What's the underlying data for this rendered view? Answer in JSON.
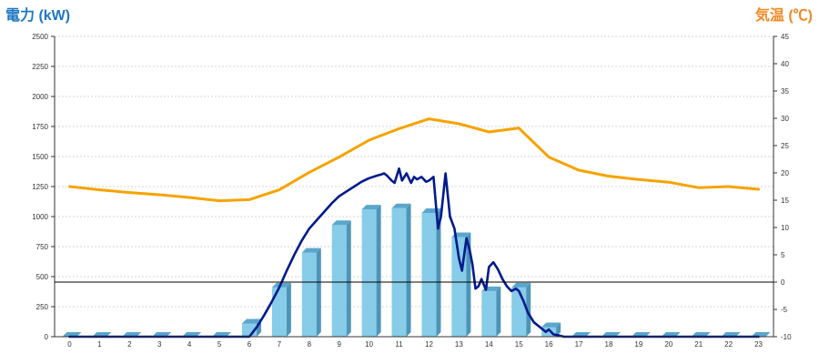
{
  "chart_data": {
    "type": "bar+line",
    "left_axis_title": "電力 (kW)",
    "right_axis_title": "気温 (℃)",
    "left_axis_color": "#1f78c1",
    "right_axis_color": "#f08a24",
    "categories": [
      "0",
      "1",
      "2",
      "3",
      "4",
      "5",
      "6",
      "7",
      "8",
      "9",
      "10",
      "11",
      "12",
      "13",
      "14",
      "15",
      "16",
      "17",
      "18",
      "19",
      "20",
      "21",
      "22",
      "23"
    ],
    "y_left_ticks": [
      "0",
      "250",
      "500",
      "750",
      "1000",
      "1250",
      "1500",
      "1750",
      "2000",
      "2250",
      "2500"
    ],
    "y_right_ticks": [
      "-10",
      "-5",
      "0",
      "5",
      "10",
      "15",
      "20",
      "25",
      "30",
      "35",
      "40",
      "45"
    ],
    "y_left_range": [
      0,
      2500
    ],
    "y_right_range": [
      -10,
      45
    ],
    "grid": true,
    "series": [
      {
        "kind": "bar",
        "axis": "left",
        "color": "#87cce8",
        "values": [
          0,
          0,
          0,
          0,
          0,
          0,
          110,
          410,
          700,
          930,
          1060,
          1070,
          1030,
          830,
          380,
          410,
          80,
          0,
          0,
          0,
          0,
          0,
          0,
          0
        ]
      },
      {
        "kind": "line",
        "axis": "left",
        "color": "#001a8c",
        "x": [
          0,
          0.5,
          1,
          1.5,
          2,
          2.5,
          3,
          3.5,
          4,
          4.5,
          5,
          5.5,
          6,
          6.25,
          6.5,
          6.75,
          7,
          7.25,
          7.5,
          7.75,
          8,
          8.25,
          8.5,
          8.75,
          9,
          9.25,
          9.5,
          9.75,
          10,
          10.25,
          10.4,
          10.5,
          10.6,
          10.75,
          10.85,
          11,
          11.1,
          11.25,
          11.4,
          11.5,
          11.6,
          11.75,
          11.9,
          12,
          12.15,
          12.3,
          12.4,
          12.55,
          12.7,
          12.85,
          13,
          13.1,
          13.25,
          13.35,
          13.45,
          13.55,
          13.65,
          13.75,
          13.9,
          14,
          14.15,
          14.3,
          14.45,
          14.6,
          14.75,
          14.9,
          15,
          15.15,
          15.3,
          15.5,
          15.7,
          15.9,
          16,
          16.15,
          16.35,
          16.5,
          16.7,
          17,
          17.5,
          18,
          18.5,
          19,
          19.5,
          20,
          20.5,
          21,
          21.5,
          22,
          22.5,
          23
        ],
        "values": [
          0,
          0,
          0,
          0,
          0,
          0,
          0,
          0,
          0,
          0,
          0,
          0,
          0,
          80,
          180,
          290,
          410,
          550,
          680,
          800,
          900,
          970,
          1040,
          1110,
          1170,
          1210,
          1250,
          1290,
          1320,
          1340,
          1350,
          1360,
          1340,
          1300,
          1280,
          1400,
          1300,
          1360,
          1280,
          1330,
          1310,
          1330,
          1290,
          1300,
          1330,
          900,
          1000,
          1360,
          1000,
          900,
          650,
          550,
          820,
          730,
          600,
          400,
          420,
          480,
          390,
          580,
          620,
          560,
          480,
          420,
          380,
          400,
          380,
          300,
          200,
          120,
          80,
          40,
          60,
          20,
          10,
          0,
          0,
          0,
          0,
          0,
          0,
          0,
          0,
          0,
          0,
          0,
          0,
          0,
          0,
          0
        ]
      },
      {
        "kind": "line",
        "axis": "right",
        "color": "#f5a300",
        "values": [
          17.5,
          16.9,
          16.4,
          16.0,
          15.5,
          14.9,
          15.1,
          16.9,
          20.1,
          22.9,
          26.0,
          28.1,
          29.9,
          29.0,
          27.5,
          28.2,
          22.9,
          20.5,
          19.4,
          18.8,
          18.3,
          17.3,
          17.5,
          17.0
        ]
      }
    ]
  }
}
